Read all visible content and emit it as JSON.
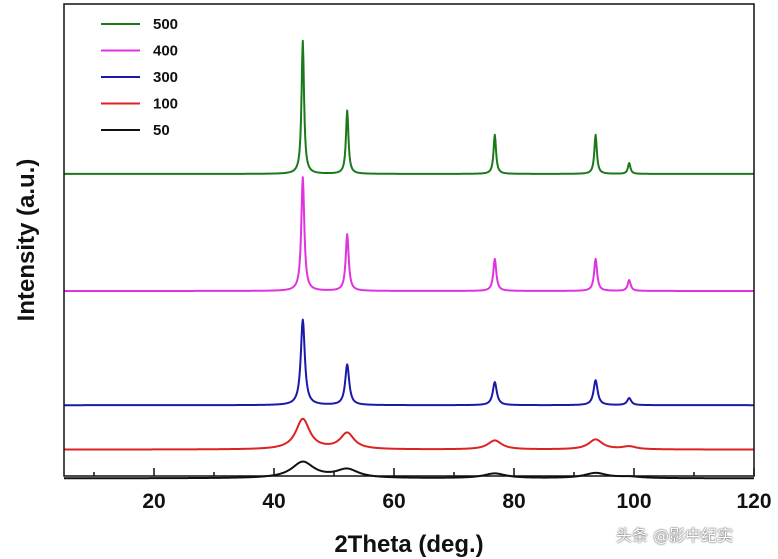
{
  "chart_data": {
    "type": "line",
    "title": "",
    "xlabel": "2Theta (deg.)",
    "ylabel": "Intensity (a.u.)",
    "xlim": [
      5,
      120
    ],
    "ylim": [
      0,
      100
    ],
    "xticks": [
      20,
      40,
      60,
      80,
      100,
      120
    ],
    "xtick_labels": [
      "20",
      "40",
      "60",
      "80",
      "100",
      "120"
    ],
    "legend_position": "top-left",
    "peaks_2theta": [
      44.8,
      52.2,
      76.8,
      93.6,
      99.2
    ],
    "series": [
      {
        "name": "500",
        "color": "#1a7a1a",
        "baseline": 64.0,
        "peak_heights": [
          28.2,
          13.4,
          8.3,
          8.3,
          2.3
        ],
        "fwhm": 0.5
      },
      {
        "name": "400",
        "color": "#e033e0",
        "baseline": 39.2,
        "peak_heights": [
          24.1,
          12.0,
          6.8,
          6.8,
          2.3
        ],
        "fwhm": 0.6
      },
      {
        "name": "300",
        "color": "#1a1aaa",
        "baseline": 15.0,
        "peak_heights": [
          18.1,
          8.6,
          4.9,
          5.3,
          1.5
        ],
        "fwhm": 0.8
      },
      {
        "name": "100",
        "color": "#dd2222",
        "baseline": 5.6,
        "peak_heights": [
          6.4,
          3.4,
          1.9,
          2.1,
          0.6
        ],
        "fwhm": 2.8
      },
      {
        "name": "50",
        "color": "#111111",
        "baseline": -0.5,
        "peak_heights": [
          3.4,
          1.8,
          1.0,
          1.1,
          0.3
        ],
        "fwhm": 4.5
      }
    ]
  },
  "watermark": "头条 @影中纪实"
}
